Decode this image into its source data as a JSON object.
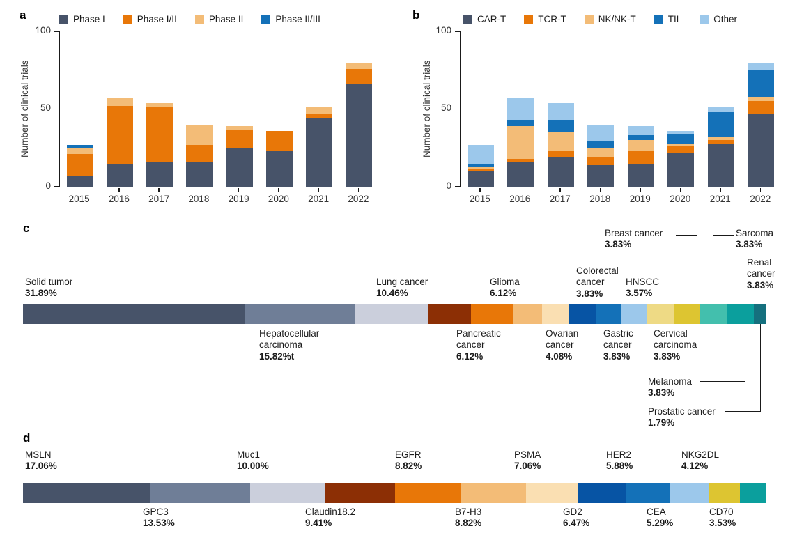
{
  "panels": {
    "a": {
      "letter": "a"
    },
    "b": {
      "letter": "b"
    },
    "c": {
      "letter": "c"
    },
    "d": {
      "letter": "d"
    }
  },
  "chart_data": [
    {
      "type": "bar",
      "stacked": true,
      "panel": "a",
      "ylabel": "Number of clinical trials",
      "ylim": [
        0,
        100
      ],
      "yticks": [
        100,
        50,
        0
      ],
      "grid": false,
      "legend_position": "top",
      "categories": [
        "2015",
        "2016",
        "2017",
        "2018",
        "2019",
        "2020",
        "2021",
        "2022"
      ],
      "series": [
        {
          "name": "Phase I",
          "color": "#475369",
          "values": [
            7,
            15,
            16,
            16,
            25,
            23,
            44,
            66
          ]
        },
        {
          "name": "Phase I/II",
          "color": "#E87708",
          "values": [
            14,
            37,
            35,
            11,
            12,
            13,
            3,
            10
          ]
        },
        {
          "name": "Phase II",
          "color": "#F3BC77",
          "values": [
            4,
            5,
            3,
            13,
            2,
            0,
            4,
            4
          ]
        },
        {
          "name": "Phase II/III",
          "color": "#1471B8",
          "values": [
            2,
            0,
            0,
            0,
            0,
            0,
            0,
            0
          ]
        }
      ]
    },
    {
      "type": "bar",
      "stacked": true,
      "panel": "b",
      "ylabel": "Number of clinical trials",
      "ylim": [
        0,
        100
      ],
      "yticks": [
        100,
        50,
        0
      ],
      "grid": false,
      "legend_position": "top",
      "categories": [
        "2015",
        "2016",
        "2017",
        "2018",
        "2019",
        "2020",
        "2021",
        "2022"
      ],
      "series": [
        {
          "name": "CAR-T",
          "color": "#475369",
          "values": [
            10,
            16,
            19,
            14,
            15,
            22,
            28,
            47
          ]
        },
        {
          "name": "TCR-T",
          "color": "#E87708",
          "values": [
            1,
            2,
            4,
            5,
            8,
            4,
            2,
            8
          ]
        },
        {
          "name": "NK/NK-T",
          "color": "#F3BC77",
          "values": [
            2,
            21,
            12,
            6,
            7,
            2,
            2,
            3
          ]
        },
        {
          "name": "TIL",
          "color": "#1471B8",
          "values": [
            2,
            4,
            8,
            4,
            3,
            6,
            16,
            17
          ]
        },
        {
          "name": "Other",
          "color": "#9CC8EB",
          "values": [
            12,
            14,
            11,
            11,
            6,
            2,
            3,
            5
          ]
        }
      ]
    },
    {
      "type": "strip",
      "panel": "c",
      "segments": [
        {
          "label": "Solid tumor",
          "pct_text": "31.89%",
          "value": 31.89,
          "color": "#475369"
        },
        {
          "label": "Hepatocellular carcinoma",
          "pct_text": "15.82%t",
          "value": 15.82,
          "color": "#6F7E97"
        },
        {
          "label": "Lung cancer",
          "pct_text": "10.46%",
          "value": 10.46,
          "color": "#CBCFDC"
        },
        {
          "label": "Pancreatic cancer",
          "pct_text": "6.12%",
          "value": 6.12,
          "color": "#8C2F05"
        },
        {
          "label": "Glioma",
          "pct_text": "6.12%",
          "value": 6.12,
          "color": "#E87708"
        },
        {
          "label": "Ovarian cancer",
          "pct_text": "4.08%",
          "value": 4.08,
          "color": "#F3BC77"
        },
        {
          "label": "Colorectal cancer",
          "pct_text": "3.83%",
          "value": 3.83,
          "color": "#FADFB2"
        },
        {
          "label": "Gastric cancer",
          "pct_text": "3.83%",
          "value": 3.83,
          "color": "#0754A4"
        },
        {
          "label": "HNSCC",
          "pct_text": "3.57%",
          "value": 3.57,
          "color": "#1471B8"
        },
        {
          "label": "Cervical carcinoma",
          "pct_text": "3.83%",
          "value": 3.83,
          "color": "#9CC8EB"
        },
        {
          "label": "Breast cancer",
          "pct_text": "3.83%",
          "value": 3.83,
          "color": "#EEDA85"
        },
        {
          "label": "Sarcoma",
          "pct_text": "3.83%",
          "value": 3.83,
          "color": "#DDC531"
        },
        {
          "label": "Renal cancer",
          "pct_text": "3.83%",
          "value": 3.83,
          "color": "#43BFAD"
        },
        {
          "label": "Melanoma",
          "pct_text": "3.83%",
          "value": 3.83,
          "color": "#0B9F9D"
        },
        {
          "label": "Prostatic cancer",
          "pct_text": "1.79%",
          "value": 1.79,
          "color": "#15707E"
        }
      ]
    },
    {
      "type": "strip",
      "panel": "d",
      "segments": [
        {
          "label": "MSLN",
          "pct_text": "17.06%",
          "value": 17.06,
          "color": "#475369"
        },
        {
          "label": "GPC3",
          "pct_text": "13.53%",
          "value": 13.53,
          "color": "#6F7E97"
        },
        {
          "label": "Muc1",
          "pct_text": "10.00%",
          "value": 10.0,
          "color": "#CBCFDC"
        },
        {
          "label": "Claudin18.2",
          "pct_text": "9.41%",
          "value": 9.41,
          "color": "#8C2F05"
        },
        {
          "label": "EGFR",
          "pct_text": "8.82%",
          "value": 8.82,
          "color": "#E87708"
        },
        {
          "label": "B7-H3",
          "pct_text": "8.82%",
          "value": 8.82,
          "color": "#F3BC77"
        },
        {
          "label": "PSMA",
          "pct_text": "7.06%",
          "value": 7.06,
          "color": "#FADFB2"
        },
        {
          "label": "GD2",
          "pct_text": "6.47%",
          "value": 6.47,
          "color": "#0754A4"
        },
        {
          "label": "HER2",
          "pct_text": "5.88%",
          "value": 5.88,
          "color": "#1471B8"
        },
        {
          "label": "CEA",
          "pct_text": "5.29%",
          "value": 5.29,
          "color": "#9CC8EB"
        },
        {
          "label": "NKG2DL",
          "pct_text": "4.12%",
          "value": 4.12,
          "color": "#DDC531"
        },
        {
          "label": "CD70",
          "pct_text": "3.53%",
          "value": 3.53,
          "color": "#0B9F9D"
        }
      ]
    }
  ]
}
